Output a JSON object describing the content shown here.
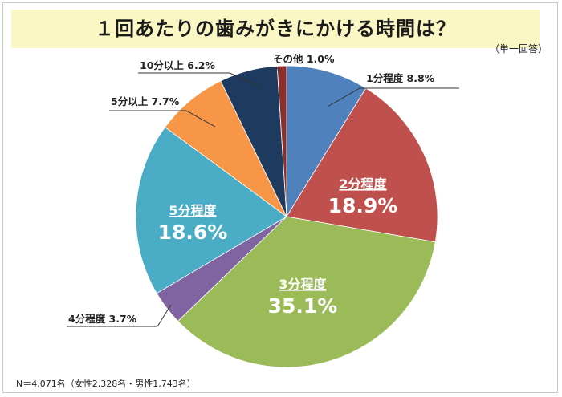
{
  "title": "１回あたりの歯みがきにかける時間は？",
  "subnote": "（単一回答）",
  "footnote": "N＝4,071名（女性2,328名・男性1,743名）",
  "chart_data": {
    "type": "pie",
    "slices": [
      {
        "label": "1分程度",
        "value": 8.8,
        "value_text": "8.8%",
        "color": "#4f81bd",
        "label_style": "outside"
      },
      {
        "label": "2分程度",
        "value": 18.9,
        "value_text": "18.9%",
        "color": "#c0504d",
        "label_style": "inside"
      },
      {
        "label": "3分程度",
        "value": 35.1,
        "value_text": "35.1%",
        "color": "#9bbb59",
        "label_style": "inside"
      },
      {
        "label": "4分程度",
        "value": 3.7,
        "value_text": "3.7%",
        "color": "#8064a2",
        "label_style": "outside"
      },
      {
        "label": "5分程度",
        "value": 18.6,
        "value_text": "18.6%",
        "color": "#4bacc6",
        "label_style": "inside"
      },
      {
        "label": "5分以上",
        "value": 7.7,
        "value_text": "7.7%",
        "color": "#f79646",
        "label_style": "outside"
      },
      {
        "label": "10分以上",
        "value": 6.2,
        "value_text": "6.2%",
        "color": "#1f3a5f",
        "label_style": "outside"
      },
      {
        "label": "その他",
        "value": 1.0,
        "value_text": "1.0%",
        "color": "#8b2f2c",
        "label_style": "outside"
      }
    ]
  }
}
